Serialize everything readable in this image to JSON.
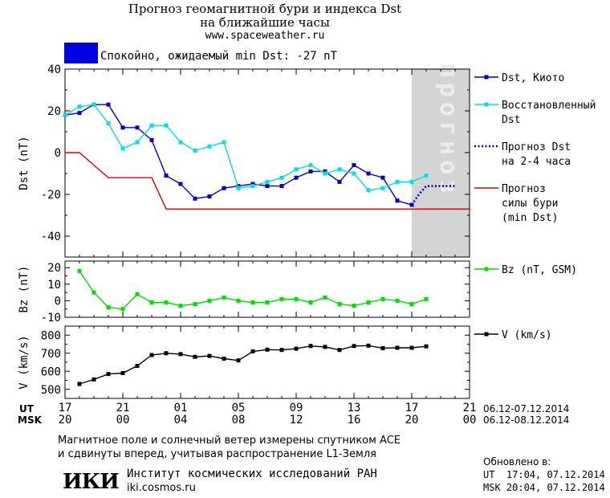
{
  "header": {
    "title_line1": "Прогноз геомагнитной бури и индекса Dst",
    "title_line2": "на ближайшие часы",
    "site": "www.spaceweather.ru",
    "status_text": "Спокойно, ожидаемый min Dst: -27 nT",
    "status_color": "#0000e0"
  },
  "chart_data": [
    {
      "type": "line",
      "name": "dst",
      "ylabel": "Dst (nT)",
      "ylim": [
        -50,
        40
      ],
      "yticks": [
        -40,
        -20,
        0,
        20,
        40
      ],
      "xlim": [
        0,
        28
      ],
      "forecast_band": [
        24,
        28
      ],
      "forecast_label": "прогноз",
      "series": [
        {
          "name": "Dst, Киото",
          "color": "#0000cc",
          "style": "solid-marker",
          "x": [
            0,
            1,
            2,
            3,
            4,
            5,
            6,
            7,
            8,
            9,
            10,
            11,
            12,
            13,
            14,
            15,
            16,
            17,
            18,
            19,
            20,
            21,
            22,
            23,
            24
          ],
          "y": [
            18,
            19,
            23,
            23,
            12,
            12,
            6,
            -11,
            -15,
            -22,
            -21,
            -17,
            -16,
            -15,
            -16,
            -16,
            -12,
            -9,
            -9,
            -14,
            -6,
            -10,
            -12,
            -23,
            -25
          ]
        },
        {
          "name": "Восстановленный Dst",
          "color": "#00e0e0",
          "style": "solid-marker",
          "x": [
            0,
            1,
            2,
            3,
            4,
            5,
            6,
            7,
            8,
            9,
            10,
            11,
            12,
            13,
            14,
            15,
            16,
            17,
            18,
            19,
            20,
            21,
            22,
            23,
            24,
            25
          ],
          "y": [
            18,
            22,
            23,
            14,
            2,
            5,
            13,
            13,
            5,
            1,
            3,
            5,
            -17,
            -16,
            -14,
            -12,
            -8,
            -6,
            -10,
            -8,
            -10,
            -18,
            -17,
            -14,
            -14,
            -11
          ]
        },
        {
          "name": "Прогноз Dst на 2-4 часа",
          "color": "#0000cc",
          "style": "dotted",
          "x": [
            24,
            24.5,
            25,
            26,
            27
          ],
          "y": [
            -25,
            -20,
            -16,
            -16,
            -16
          ]
        },
        {
          "name": "Прогноз силы бури (min Dst)",
          "color": "#dd0000",
          "style": "step",
          "x": [
            0,
            1,
            2,
            3,
            4,
            6,
            7,
            8,
            28
          ],
          "y": [
            0,
            0,
            -6,
            -12,
            -12,
            -12,
            -27,
            -27,
            -27
          ]
        }
      ],
      "legend": [
        {
          "lines": [
            "Dst, Киото"
          ],
          "color": "#0000cc",
          "style": "solid-marker"
        },
        {
          "lines": [
            "Восстановленный",
            "Dst"
          ],
          "color": "#00e0e0",
          "style": "solid-marker"
        },
        {
          "lines": [
            "Прогноз Dst",
            "на 2-4 часа"
          ],
          "color": "#0000cc",
          "style": "dotted"
        },
        {
          "lines": [
            "Прогноз",
            "силы бури",
            "(min Dst)"
          ],
          "color": "#dd0000",
          "style": "solid"
        }
      ]
    },
    {
      "type": "line",
      "name": "bz",
      "ylabel": "Bz (nT)",
      "ylim": [
        -10,
        24
      ],
      "yticks": [
        -10,
        0,
        10,
        20
      ],
      "xlim": [
        0,
        28
      ],
      "series": [
        {
          "name": "Bz (nT, GSM)",
          "color": "#00dd00",
          "x": [
            1,
            2,
            3,
            4,
            5,
            6,
            7,
            8,
            9,
            10,
            11,
            12,
            13,
            14,
            15,
            16,
            17,
            18,
            19,
            20,
            21,
            22,
            23,
            24,
            25
          ],
          "y": [
            18,
            5,
            -4,
            -5,
            4,
            -1,
            -1,
            -3,
            -2,
            0,
            2,
            0,
            -1,
            -1,
            1,
            1,
            -1,
            2,
            -2,
            -3,
            -1,
            1,
            0,
            -2,
            1
          ]
        }
      ],
      "legend": [
        {
          "lines": [
            "Bz (nT, GSM)"
          ],
          "color": "#00dd00"
        }
      ]
    },
    {
      "type": "line",
      "name": "v",
      "ylabel": "V (km/s)",
      "ylim": [
        450,
        850
      ],
      "yticks": [
        500,
        600,
        700,
        800
      ],
      "xlim": [
        0,
        28
      ],
      "series": [
        {
          "name": "V (km/s)",
          "color": "#000000",
          "x": [
            1,
            2,
            3,
            4,
            5,
            6,
            7,
            8,
            9,
            10,
            11,
            12,
            13,
            14,
            15,
            16,
            17,
            18,
            19,
            20,
            21,
            22,
            23,
            24,
            25
          ],
          "y": [
            530,
            555,
            585,
            590,
            630,
            690,
            700,
            695,
            680,
            685,
            670,
            660,
            710,
            720,
            718,
            725,
            740,
            735,
            718,
            740,
            742,
            728,
            730,
            730,
            738
          ]
        }
      ],
      "legend": [
        {
          "lines": [
            "V (km/s)"
          ],
          "color": "#000000"
        }
      ]
    }
  ],
  "time_axis": {
    "ut_label": "UT",
    "msk_label": "MSK",
    "positions": [
      0,
      4,
      8,
      12,
      16,
      20,
      24,
      28
    ],
    "ut_ticks": [
      "17",
      "21",
      "01",
      "05",
      "09",
      "13",
      "17",
      "21"
    ],
    "msk_ticks": [
      "20",
      "00",
      "04",
      "08",
      "12",
      "16",
      "20",
      "00"
    ],
    "ut_range": "06.12-07.12.2014",
    "msk_range": "06.12-08.12.2014"
  },
  "footer": {
    "note_line1": "Магнитное поле и солнечный ветер измерены спутником ACE",
    "note_line2": "и сдвинуты вперед, учитывая распространение L1-Земля",
    "logo_text": "ИКИ",
    "institute": "Институт космических исследований РАН",
    "institute_site": "iki.cosmos.ru",
    "updated_label": "Обновлено в:",
    "updated_ut": "UT  17:04, 07.12.2014",
    "updated_msk": "MSK 20:04, 07.12.2014"
  }
}
